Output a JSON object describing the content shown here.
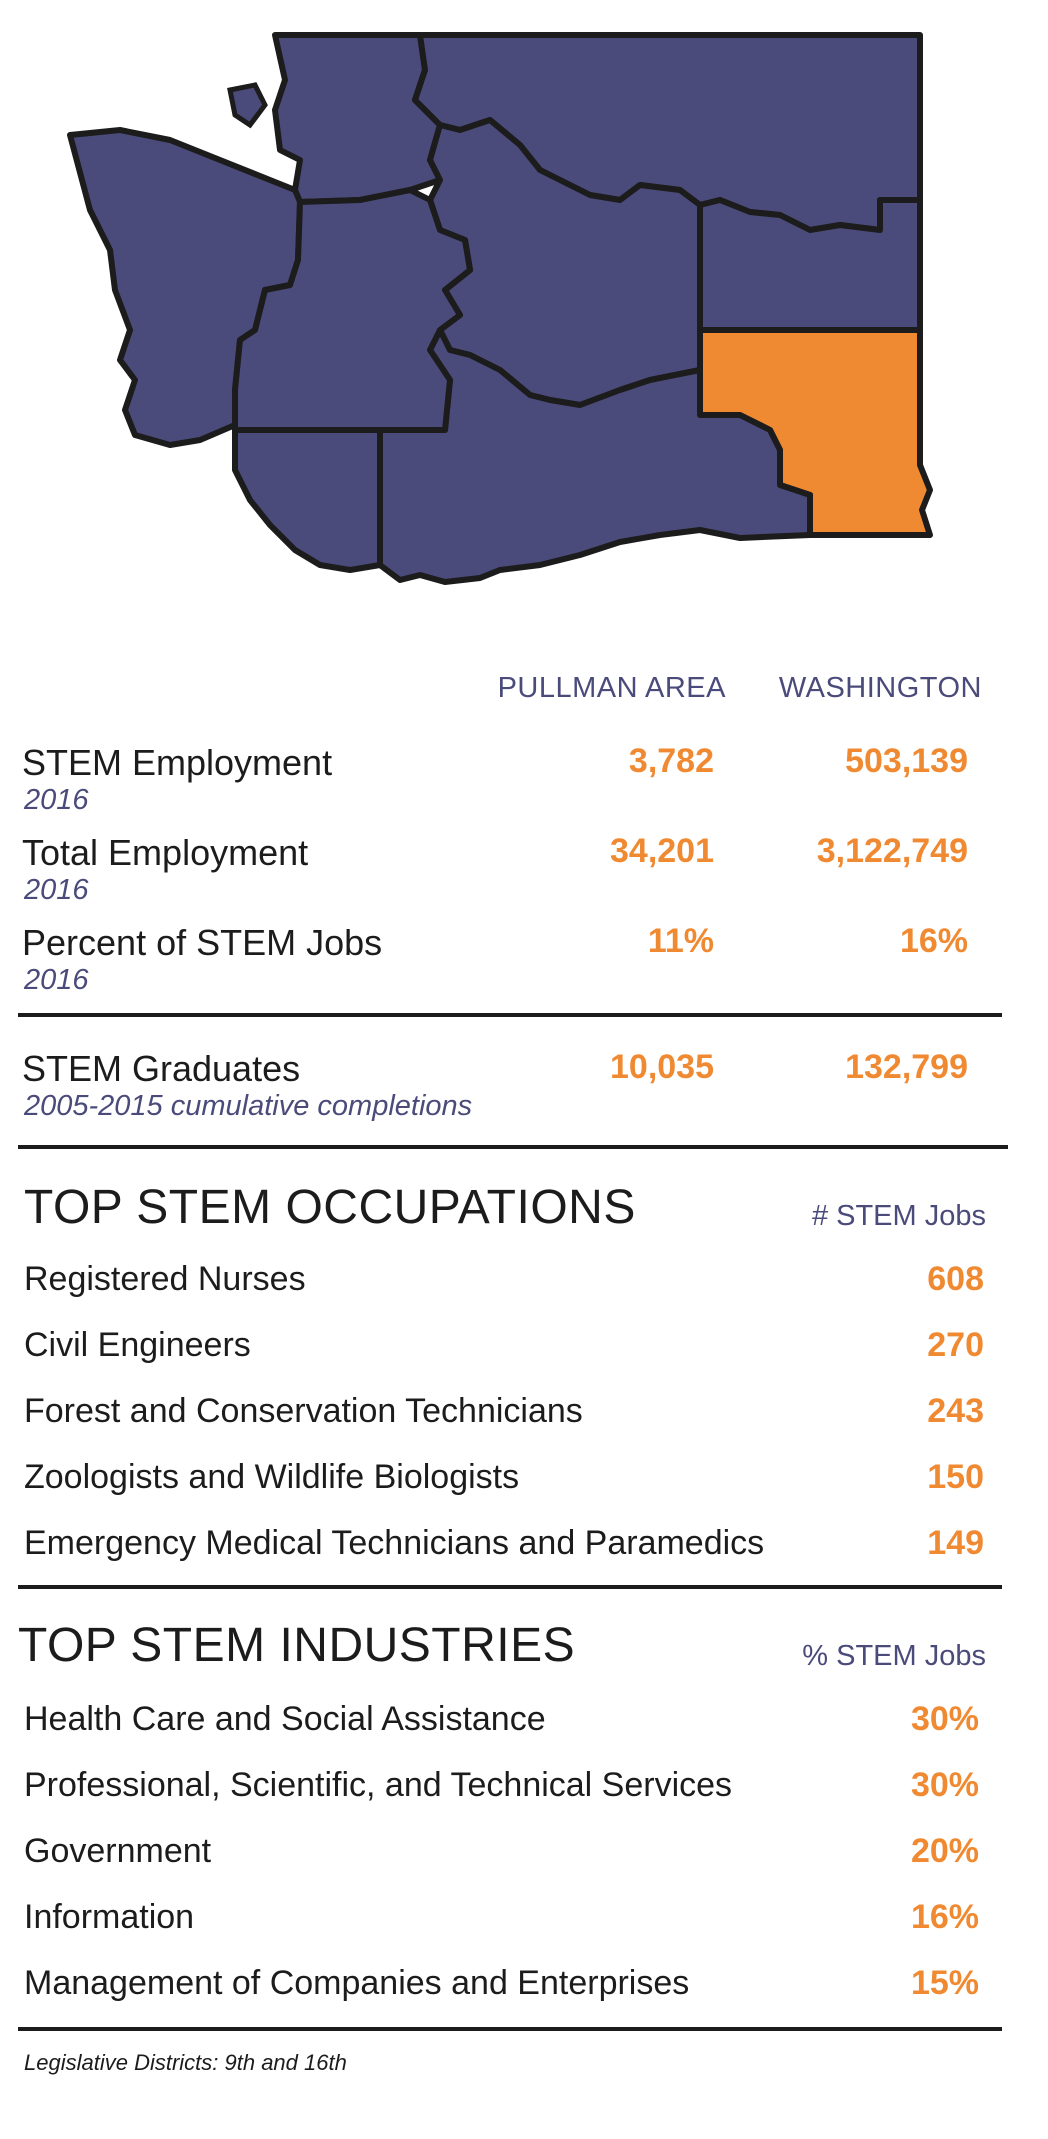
{
  "colors": {
    "map_fill": "#4b4b7b",
    "highlight": "#f08a32",
    "outline": "#1c1c1c"
  },
  "columns": {
    "pullman": "PULLMAN AREA",
    "washington": "WASHINGTON"
  },
  "metrics": [
    {
      "label": "STEM Employment",
      "sub": "2016",
      "pullman": "3,782",
      "washington": "503,139"
    },
    {
      "label": "Total Employment",
      "sub": "2016",
      "pullman": "34,201",
      "washington": "3,122,749"
    },
    {
      "label": "Percent of STEM Jobs",
      "sub": "2016",
      "pullman": "11%",
      "washington": "16%"
    },
    {
      "label": "STEM Graduates",
      "sub": "2005-2015 cumulative completions",
      "pullman": "10,035",
      "washington": "132,799"
    }
  ],
  "occupations": {
    "title": "TOP STEM OCCUPATIONS",
    "column": "# STEM Jobs",
    "items": [
      {
        "name": "Registered Nurses",
        "value": "608"
      },
      {
        "name": "Civil Engineers",
        "value": "270"
      },
      {
        "name": "Forest and Conservation Technicians",
        "value": "243"
      },
      {
        "name": "Zoologists and Wildlife Biologists",
        "value": "150"
      },
      {
        "name": "Emergency Medical Technicians and Paramedics",
        "value": "149"
      }
    ]
  },
  "industries": {
    "title": "TOP STEM INDUSTRIES",
    "column": "% STEM Jobs",
    "items": [
      {
        "name": "Health Care and Social Assistance",
        "value": "30%"
      },
      {
        "name": "Professional, Scientific, and Technical Services",
        "value": "30%"
      },
      {
        "name": "Government",
        "value": "20%"
      },
      {
        "name": "Information",
        "value": "16%"
      },
      {
        "name": "Management of Companies and Enterprises",
        "value": "15%"
      }
    ]
  },
  "footnote": "Legislative Districts:  9th and 16th"
}
